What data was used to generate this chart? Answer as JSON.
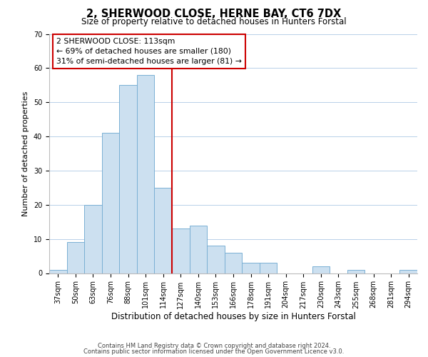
{
  "title": "2, SHERWOOD CLOSE, HERNE BAY, CT6 7DX",
  "subtitle": "Size of property relative to detached houses in Hunters Forstal",
  "xlabel": "Distribution of detached houses by size in Hunters Forstal",
  "ylabel": "Number of detached properties",
  "bar_labels": [
    "37sqm",
    "50sqm",
    "63sqm",
    "76sqm",
    "88sqm",
    "101sqm",
    "114sqm",
    "127sqm",
    "140sqm",
    "153sqm",
    "166sqm",
    "178sqm",
    "191sqm",
    "204sqm",
    "217sqm",
    "230sqm",
    "243sqm",
    "255sqm",
    "268sqm",
    "281sqm",
    "294sqm"
  ],
  "bar_heights": [
    1,
    9,
    20,
    41,
    55,
    58,
    25,
    13,
    14,
    8,
    6,
    3,
    3,
    0,
    0,
    2,
    0,
    1,
    0,
    0,
    1
  ],
  "bar_color": "#cce0f0",
  "bar_edgecolor": "#7ab0d4",
  "highlight_line_color": "#cc0000",
  "highlight_line_index": 6,
  "ylim": [
    0,
    70
  ],
  "yticks": [
    0,
    10,
    20,
    30,
    40,
    50,
    60,
    70
  ],
  "annotation_title": "2 SHERWOOD CLOSE: 113sqm",
  "annotation_line1": "← 69% of detached houses are smaller (180)",
  "annotation_line2": "31% of semi-detached houses are larger (81) →",
  "annotation_box_edgecolor": "#cc0000",
  "footer1": "Contains HM Land Registry data © Crown copyright and database right 2024.",
  "footer2": "Contains public sector information licensed under the Open Government Licence v3.0.",
  "background_color": "#ffffff",
  "grid_color": "#b8d0e8",
  "title_fontsize": 10.5,
  "subtitle_fontsize": 8.5,
  "ylabel_fontsize": 8.0,
  "xlabel_fontsize": 8.5,
  "tick_fontsize": 7.0,
  "ann_fontsize": 7.8,
  "footer_fontsize": 6.0
}
